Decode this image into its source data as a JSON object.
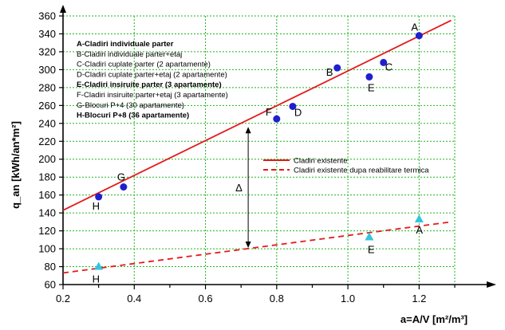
{
  "chart_data": {
    "type": "scatter",
    "xlabel": "a=A/V [m²/m³]",
    "ylabel": "q_an [kWh/an*m²]",
    "xlim": [
      0.2,
      1.3
    ],
    "ylim": [
      60,
      360
    ],
    "x_ticks": [
      0.2,
      0.4,
      0.6,
      0.8,
      1.0,
      1.2
    ],
    "x_tick_labels": [
      "0.2",
      "0.4",
      "0.6",
      "0.8",
      "1.0",
      "1.2"
    ],
    "y_ticks": [
      60,
      80,
      100,
      120,
      140,
      160,
      180,
      200,
      220,
      240,
      260,
      280,
      300,
      320,
      340,
      360
    ],
    "y_tick_labels": [
      "60",
      "80",
      "100",
      "120",
      "140",
      "160",
      "180",
      "200",
      "220",
      "240",
      "260",
      "280",
      "300",
      "320",
      "340",
      "360"
    ],
    "grid": true,
    "category_legend": [
      {
        "text": "A-Cladiri individuale parter",
        "bold": true
      },
      {
        "text": "B-Cladiri individuale parter+etaj",
        "bold": false
      },
      {
        "text": "C-Cladiri cuplate parter (2 apartamente)",
        "bold": false
      },
      {
        "text": "D-Cladiri cuplate parter+etaj (2 apartamente)",
        "bold": false
      },
      {
        "text": "E-Cladiri insiruite parter (3 apartamente)",
        "bold": true
      },
      {
        "text": "F-Cladiri insiruite parter+etaj (3 apartamente)",
        "bold": false
      },
      {
        "text": "G-Blocuri P+4 (30 apartamente)",
        "bold": false
      },
      {
        "text": "H-Blocuri P+8 (36 apartamente)",
        "bold": true
      }
    ],
    "series": [
      {
        "name": "Cladiri existente",
        "marker": "circle",
        "marker_color": "#1f1fd0",
        "line_color": "#e31a1c",
        "line_style": "solid",
        "trend_line": [
          [
            0.2,
            143
          ],
          [
            1.29,
            355
          ]
        ],
        "points": [
          {
            "label": "A",
            "x": 1.2,
            "y": 338
          },
          {
            "label": "B",
            "x": 0.97,
            "y": 302
          },
          {
            "label": "C",
            "x": 1.1,
            "y": 308
          },
          {
            "label": "E",
            "x": 1.06,
            "y": 292
          },
          {
            "label": "F",
            "x": 0.8,
            "y": 245
          },
          {
            "label": "D",
            "x": 0.845,
            "y": 259
          },
          {
            "label": "G",
            "x": 0.37,
            "y": 169
          },
          {
            "label": "H",
            "x": 0.3,
            "y": 158
          }
        ]
      },
      {
        "name": "Cladiri existente dupa reabilitare termica",
        "marker": "triangle",
        "marker_color": "#33c4e0",
        "line_color": "#e31a1c",
        "line_style": "dashed",
        "trend_line": [
          [
            0.2,
            73
          ],
          [
            1.29,
            130
          ]
        ],
        "points": [
          {
            "label": "A",
            "x": 1.2,
            "y": 133
          },
          {
            "label": "E",
            "x": 1.06,
            "y": 113
          },
          {
            "label": "H",
            "x": 0.3,
            "y": 80
          }
        ]
      }
    ],
    "annotations": [
      {
        "text": "Δ",
        "x": 0.72,
        "y_from": 101,
        "y_to": 236,
        "type": "double-arrow"
      }
    ]
  }
}
